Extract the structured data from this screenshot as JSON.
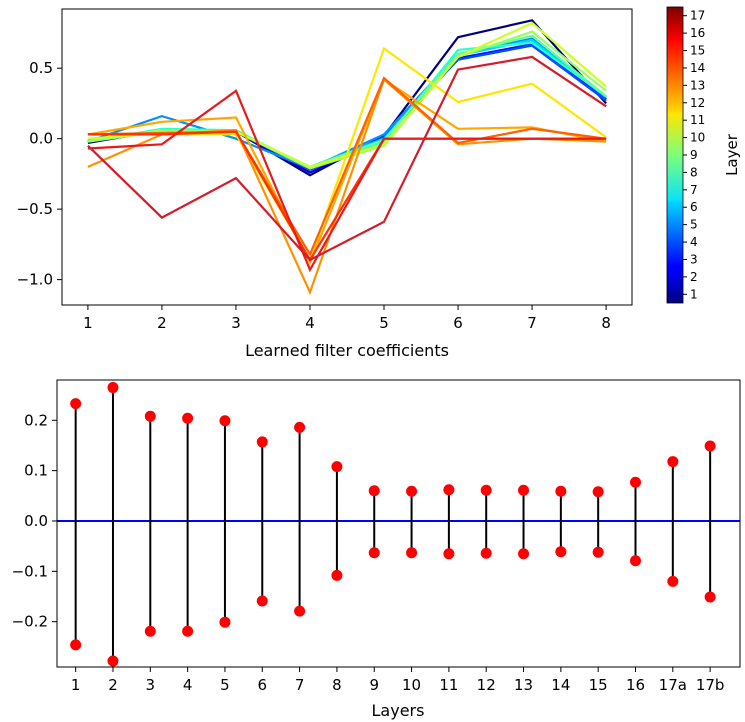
{
  "chart_data": [
    {
      "type": "line",
      "xlabel": "Learned filter coefficients",
      "x": [
        1,
        2,
        3,
        4,
        5,
        6,
        7,
        8
      ],
      "xticks": [
        "1",
        "2",
        "3",
        "4",
        "5",
        "6",
        "7",
        "8"
      ],
      "xlim": [
        0.65,
        8.35
      ],
      "ylim": [
        -1.18,
        0.92
      ],
      "yticks": [
        0.5,
        0.0,
        -0.5,
        -1.0
      ],
      "ytick_labels": [
        "0.5",
        "0.0",
        "−0.5",
        "−1.0"
      ],
      "colorbar": {
        "title": "Layer",
        "min": 1,
        "max": 17,
        "tick_labels": [
          "1",
          "2",
          "3",
          "4",
          "5",
          "6",
          "7",
          "8",
          "9",
          "10",
          "11",
          "12",
          "13",
          "14",
          "15",
          "16",
          "17"
        ]
      },
      "series": [
        {
          "name": "Layer 1",
          "color": "#00007f",
          "values": [
            -0.03,
            0.06,
            0.05,
            -0.26,
            0.02,
            0.72,
            0.84,
            0.25
          ]
        },
        {
          "name": "Layer 2",
          "color": "#0000d0",
          "values": [
            -0.02,
            0.06,
            0.05,
            -0.24,
            0.0,
            0.6,
            0.7,
            0.27
          ]
        },
        {
          "name": "Layer 3",
          "color": "#0010ff",
          "values": [
            -0.02,
            0.06,
            0.05,
            -0.22,
            0.0,
            0.57,
            0.67,
            0.28
          ]
        },
        {
          "name": "Layer 4",
          "color": "#0050ff",
          "values": [
            -0.02,
            0.06,
            0.05,
            -0.22,
            0.01,
            0.56,
            0.66,
            0.27
          ]
        },
        {
          "name": "Layer 5",
          "color": "#0090ff",
          "values": [
            -0.02,
            0.16,
            0.0,
            -0.21,
            0.03,
            0.6,
            0.71,
            0.29
          ]
        },
        {
          "name": "Layer 6",
          "color": "#00d4ff",
          "values": [
            -0.01,
            0.06,
            0.05,
            -0.2,
            0.0,
            0.59,
            0.7,
            0.3
          ]
        },
        {
          "name": "Layer 7",
          "color": "#29ffce",
          "values": [
            -0.02,
            0.07,
            0.06,
            -0.21,
            -0.02,
            0.63,
            0.68,
            0.3
          ]
        },
        {
          "name": "Layer 8",
          "color": "#60ff97",
          "values": [
            -0.02,
            0.05,
            0.05,
            -0.2,
            -0.01,
            0.6,
            0.73,
            0.3
          ]
        },
        {
          "name": "Layer 9",
          "color": "#97ff60",
          "values": [
            -0.02,
            0.06,
            0.05,
            -0.21,
            -0.05,
            0.58,
            0.76,
            0.34
          ]
        },
        {
          "name": "Layer 10",
          "color": "#ceff29",
          "values": [
            0.0,
            0.04,
            0.05,
            -0.2,
            -0.04,
            0.58,
            0.82,
            0.37
          ]
        },
        {
          "name": "Layer 11",
          "color": "#ffe600",
          "values": [
            0.03,
            0.03,
            0.03,
            -0.86,
            0.64,
            0.26,
            0.39,
            0.01
          ]
        },
        {
          "name": "Layer 12",
          "color": "#ffa700",
          "values": [
            0.03,
            0.12,
            0.15,
            -0.88,
            0.42,
            0.07,
            0.08,
            -0.02
          ]
        },
        {
          "name": "Layer 13",
          "color": "#ff9000",
          "values": [
            -0.2,
            0.03,
            0.06,
            -1.09,
            0.42,
            -0.04,
            0.0,
            -0.02
          ]
        },
        {
          "name": "Layer 14",
          "color": "#ff6000",
          "values": [
            0.03,
            0.04,
            0.05,
            -0.82,
            0.43,
            -0.03,
            0.07,
            0.0
          ]
        },
        {
          "name": "Layer 15",
          "color": "#ff3000",
          "values": [
            0.03,
            0.03,
            0.05,
            -0.86,
            0.0,
            0.0,
            0.0,
            0.0
          ]
        },
        {
          "name": "Layer 16",
          "color": "#e81a1a",
          "values": [
            -0.07,
            -0.04,
            0.34,
            -0.93,
            0.0,
            0.0,
            0.0,
            0.0
          ]
        },
        {
          "name": "Layer 17",
          "color": "#d21d2a",
          "values": [
            -0.05,
            -0.56,
            -0.28,
            -0.86,
            -0.59,
            0.49,
            0.58,
            0.23
          ]
        }
      ]
    },
    {
      "type": "stem",
      "xlabel": "Layers",
      "categories": [
        "1",
        "2",
        "3",
        "4",
        "5",
        "6",
        "7",
        "8",
        "9",
        "10",
        "11",
        "12",
        "13",
        "14",
        "15",
        "16",
        "17a",
        "17b"
      ],
      "upper_values": [
        0.233,
        0.265,
        0.208,
        0.204,
        0.199,
        0.157,
        0.186,
        0.108,
        0.06,
        0.059,
        0.062,
        0.061,
        0.061,
        0.059,
        0.058,
        0.077,
        0.118,
        0.149
      ],
      "lower_values": [
        -0.246,
        -0.278,
        -0.219,
        -0.219,
        -0.201,
        -0.159,
        -0.179,
        -0.108,
        -0.063,
        -0.063,
        -0.065,
        -0.064,
        -0.065,
        -0.061,
        -0.062,
        -0.079,
        -0.12,
        -0.151
      ],
      "baseline": 0.0,
      "xlim": [
        0.5,
        18.8
      ],
      "ylim": [
        -0.29,
        0.28
      ],
      "yticks": [
        0.2,
        0.1,
        0.0,
        -0.1,
        -0.2
      ],
      "ytick_labels": [
        "0.2",
        "0.1",
        "0.0",
        "−0.1",
        "−0.2"
      ],
      "marker_color": "#ff0000",
      "stem_color": "#000000",
      "baseline_color": "#0000ff"
    }
  ]
}
